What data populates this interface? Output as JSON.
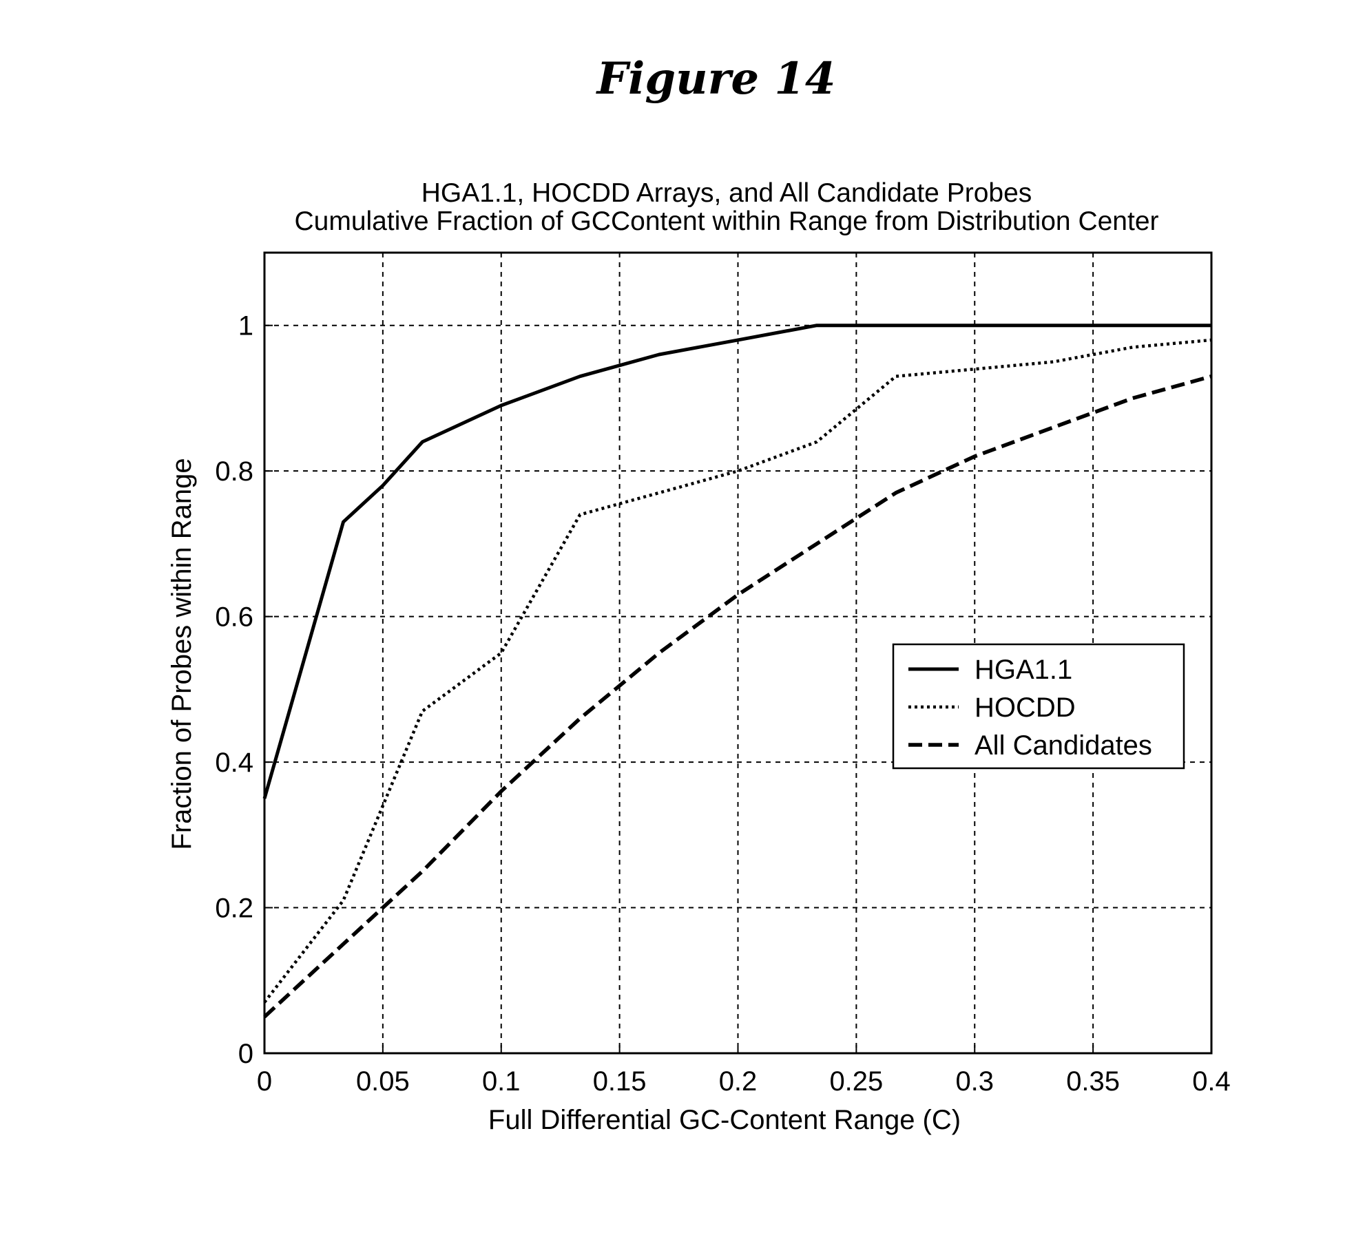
{
  "figure_title": "Figure 14",
  "chart_data": {
    "type": "line",
    "title": "HGA1.1, HOCDD Arrays, and All Candidate Probes",
    "subtitle": "Cumulative Fraction of GCContent within Range from Distribution Center",
    "xlabel": "Full Differential GC-Content Range  (C)",
    "ylabel": "Fraction of Probes within Range",
    "xlim": [
      0,
      0.4
    ],
    "ylim": [
      0,
      1.1
    ],
    "xticks": [
      0,
      0.05,
      0.1,
      0.15,
      0.2,
      0.25,
      0.3,
      0.35,
      0.4
    ],
    "xtick_labels": [
      "0",
      "0.05",
      "0.1",
      "0.15",
      "0.2",
      "0.25",
      "0.3",
      "0.35",
      "0.4"
    ],
    "yticks": [
      0,
      0.2,
      0.4,
      0.6,
      0.8,
      1
    ],
    "ytick_labels": [
      "0",
      "0.2",
      "0.4",
      "0.6",
      "0.8",
      "1"
    ],
    "grid": true,
    "legend_position": "center-right",
    "series": [
      {
        "name": "HGA1.1",
        "style": "solid",
        "x": [
          0,
          0.0333,
          0.05,
          0.0667,
          0.1,
          0.1333,
          0.1667,
          0.2,
          0.2333,
          0.2667,
          0.3,
          0.3333,
          0.3667,
          0.4
        ],
        "y": [
          0.35,
          0.73,
          0.78,
          0.84,
          0.89,
          0.93,
          0.96,
          0.98,
          1.0,
          1.0,
          1.0,
          1.0,
          1.0,
          1.0
        ]
      },
      {
        "name": "HOCDD",
        "style": "dotted",
        "x": [
          0,
          0.0333,
          0.05,
          0.0667,
          0.1,
          0.1333,
          0.1667,
          0.2,
          0.2333,
          0.2667,
          0.3,
          0.3333,
          0.3667,
          0.4
        ],
        "y": [
          0.07,
          0.21,
          0.34,
          0.47,
          0.55,
          0.74,
          0.77,
          0.8,
          0.84,
          0.93,
          0.94,
          0.95,
          0.97,
          0.98
        ]
      },
      {
        "name": "All Candidates",
        "style": "dashed",
        "x": [
          0,
          0.0333,
          0.0667,
          0.1,
          0.1333,
          0.1667,
          0.2,
          0.2333,
          0.2667,
          0.3,
          0.3333,
          0.3667,
          0.4
        ],
        "y": [
          0.05,
          0.15,
          0.25,
          0.36,
          0.46,
          0.55,
          0.63,
          0.7,
          0.77,
          0.82,
          0.86,
          0.9,
          0.93
        ]
      }
    ]
  }
}
